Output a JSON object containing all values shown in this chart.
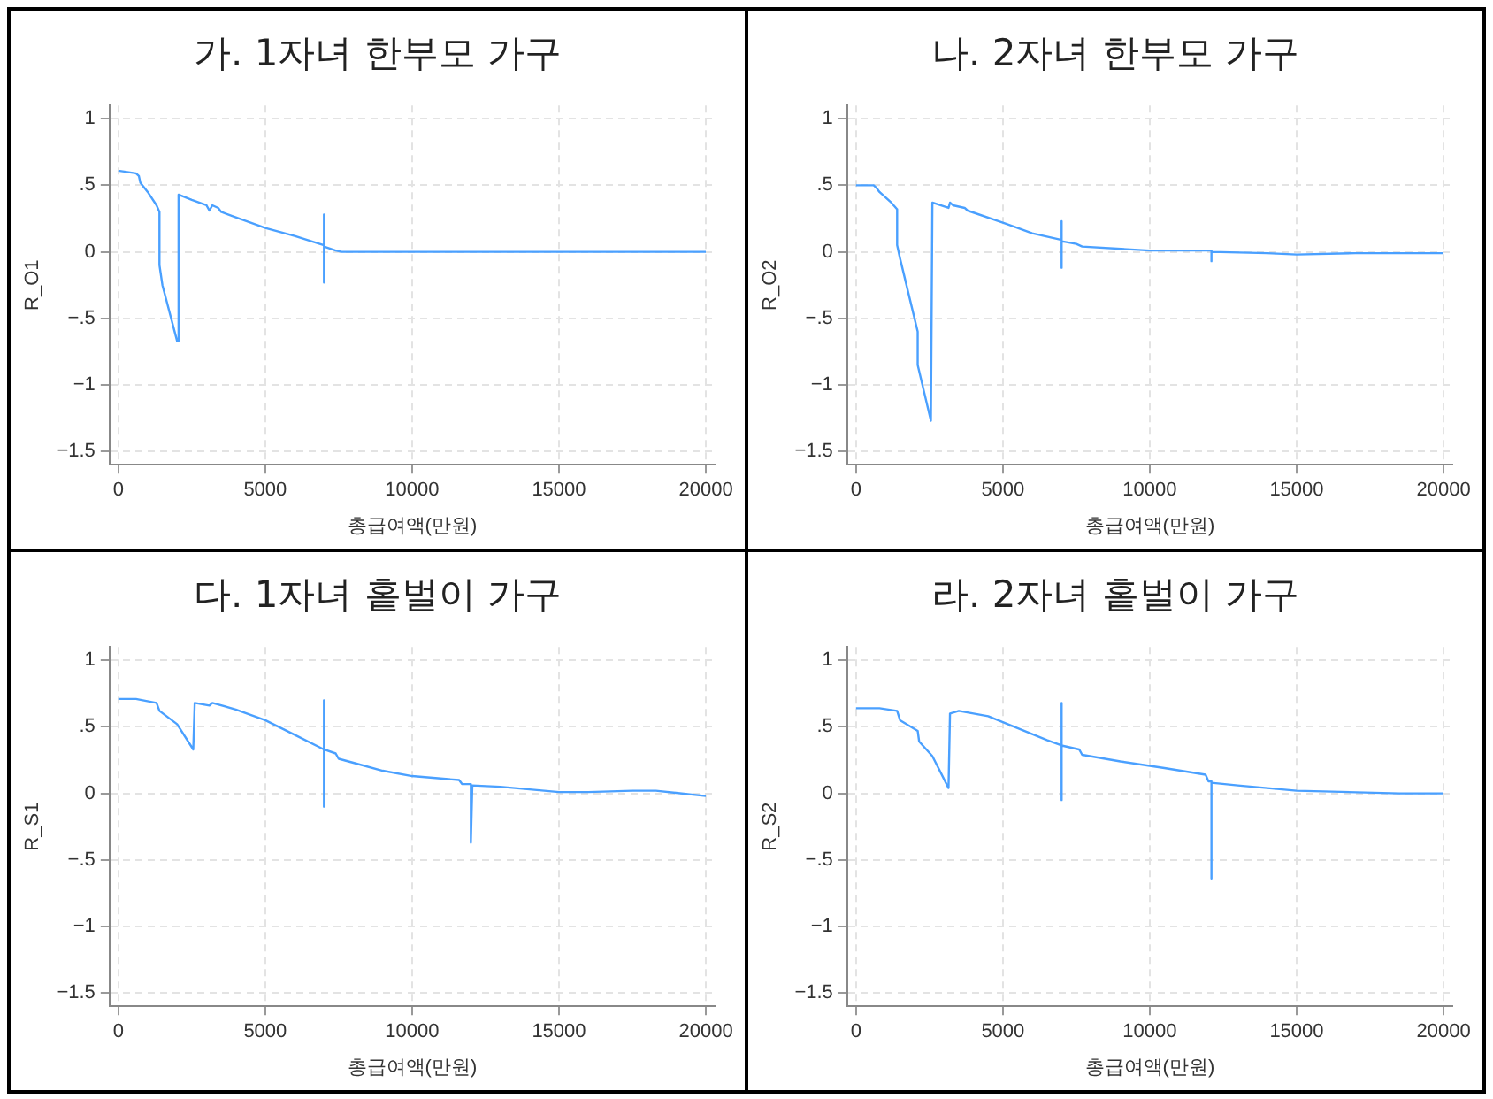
{
  "chart_data": [
    {
      "type": "line",
      "title": "가. 1자녀 한부모 가구",
      "xlabel": "총급여액(만원)",
      "ylabel": "R_O1",
      "color": "#4aa0ff",
      "grid": true,
      "xlim": [
        -300,
        20300
      ],
      "ylim": [
        -1.6,
        1.1
      ],
      "xticks": [
        0,
        5000,
        10000,
        15000,
        20000
      ],
      "yticks": [
        {
          "value": -1.5,
          "label": "−1.5"
        },
        {
          "value": -1,
          "label": "−1"
        },
        {
          "value": -0.5,
          "label": "−.5"
        },
        {
          "value": 0,
          "label": "0"
        },
        {
          "value": 0.5,
          "label": ".5"
        },
        {
          "value": 1,
          "label": "1"
        }
      ],
      "x": [
        0,
        600,
        700,
        750,
        1000,
        1300,
        1400,
        1400,
        1500,
        2000,
        2050,
        2500,
        3000,
        3100,
        3200,
        3400,
        3500,
        4000,
        5000,
        6000,
        7000,
        7000,
        7000,
        7000,
        7400,
        7600,
        20000
      ],
      "values": [
        0.61,
        0.59,
        0.57,
        0.52,
        0.45,
        0.35,
        0.3,
        -0.1,
        -0.25,
        -0.67,
        0.43,
        0.39,
        0.35,
        0.31,
        0.35,
        0.33,
        0.3,
        0.26,
        0.18,
        0.12,
        0.05,
        0.28,
        -0.23,
        0.04,
        0.01,
        0,
        0
      ]
    },
    {
      "type": "line",
      "title": "나. 2자녀 한부모 가구",
      "xlabel": "총급여액(만원)",
      "ylabel": "R_O2",
      "color": "#4aa0ff",
      "grid": true,
      "xlim": [
        -300,
        20300
      ],
      "ylim": [
        -1.6,
        1.1
      ],
      "xticks": [
        0,
        5000,
        10000,
        15000,
        20000
      ],
      "yticks": [
        {
          "value": -1.5,
          "label": "−1.5"
        },
        {
          "value": -1,
          "label": "−1"
        },
        {
          "value": -0.5,
          "label": "−.5"
        },
        {
          "value": 0,
          "label": "0"
        },
        {
          "value": 0.5,
          "label": ".5"
        },
        {
          "value": 1,
          "label": "1"
        }
      ],
      "x": [
        0,
        600,
        700,
        800,
        1200,
        1400,
        1400,
        1500,
        2100,
        2100,
        2550,
        2600,
        3150,
        3200,
        3300,
        3700,
        3800,
        5000,
        6000,
        7000,
        7000,
        7000,
        7000,
        7500,
        7700,
        10000,
        12000,
        12100,
        12100,
        12100,
        14000,
        15000,
        17000,
        20000
      ],
      "values": [
        0.5,
        0.5,
        0.48,
        0.45,
        0.37,
        0.32,
        0.05,
        -0.05,
        -0.6,
        -0.85,
        -1.27,
        0.37,
        0.33,
        0.37,
        0.35,
        0.33,
        0.31,
        0.22,
        0.14,
        0.09,
        0.23,
        -0.12,
        0.08,
        0.06,
        0.04,
        0.01,
        0.01,
        0.01,
        -0.07,
        0,
        -0.01,
        -0.02,
        -0.01,
        -0.01
      ]
    },
    {
      "type": "line",
      "title": "다. 1자녀 홑벌이 가구",
      "xlabel": "총급여액(만원)",
      "ylabel": "R_S1",
      "color": "#4aa0ff",
      "grid": true,
      "xlim": [
        -300,
        20300
      ],
      "ylim": [
        -1.6,
        1.1
      ],
      "xticks": [
        0,
        5000,
        10000,
        15000,
        20000
      ],
      "yticks": [
        {
          "value": -1.5,
          "label": "−1.5"
        },
        {
          "value": -1,
          "label": "−1"
        },
        {
          "value": -0.5,
          "label": "−.5"
        },
        {
          "value": 0,
          "label": "0"
        },
        {
          "value": 0.5,
          "label": ".5"
        },
        {
          "value": 1,
          "label": "1"
        }
      ],
      "x": [
        0,
        600,
        1300,
        1400,
        2000,
        2550,
        2600,
        3100,
        3200,
        4000,
        5000,
        6000,
        7000,
        7000,
        7000,
        7000,
        7400,
        7500,
        8000,
        9000,
        10000,
        11600,
        11700,
        12000,
        12000,
        12050,
        13000,
        15000,
        16000,
        17500,
        18300,
        20000
      ],
      "values": [
        0.71,
        0.71,
        0.68,
        0.62,
        0.52,
        0.33,
        0.68,
        0.66,
        0.68,
        0.63,
        0.55,
        0.44,
        0.33,
        0.7,
        -0.1,
        0.33,
        0.3,
        0.26,
        0.23,
        0.17,
        0.13,
        0.1,
        0.07,
        0.07,
        -0.37,
        0.06,
        0.05,
        0.01,
        0.01,
        0.02,
        0.02,
        -0.02
      ]
    },
    {
      "type": "line",
      "title": "라. 2자녀 홑벌이 가구",
      "xlabel": "총급여액(만원)",
      "ylabel": "R_S2",
      "color": "#4aa0ff",
      "grid": true,
      "xlim": [
        -300,
        20300
      ],
      "ylim": [
        -1.6,
        1.1
      ],
      "xticks": [
        0,
        5000,
        10000,
        15000,
        20000
      ],
      "yticks": [
        {
          "value": -1.5,
          "label": "−1.5"
        },
        {
          "value": -1,
          "label": "−1"
        },
        {
          "value": -0.5,
          "label": "−.5"
        },
        {
          "value": 0,
          "label": "0"
        },
        {
          "value": 0.5,
          "label": ".5"
        },
        {
          "value": 1,
          "label": "1"
        }
      ],
      "x": [
        0,
        800,
        1400,
        1500,
        2100,
        2150,
        2600,
        3150,
        3200,
        3500,
        4500,
        5500,
        6500,
        7000,
        7000,
        7000,
        7000,
        7600,
        7700,
        9000,
        10500,
        11900,
        12000,
        12100,
        12100,
        12100,
        13000,
        14000,
        15000,
        18500,
        20000
      ],
      "values": [
        0.64,
        0.64,
        0.62,
        0.55,
        0.47,
        0.39,
        0.28,
        0.04,
        0.6,
        0.62,
        0.58,
        0.49,
        0.4,
        0.36,
        0.68,
        -0.05,
        0.36,
        0.33,
        0.29,
        0.24,
        0.19,
        0.14,
        0.09,
        0.09,
        -0.64,
        0.08,
        0.06,
        0.04,
        0.02,
        0,
        0
      ]
    }
  ]
}
